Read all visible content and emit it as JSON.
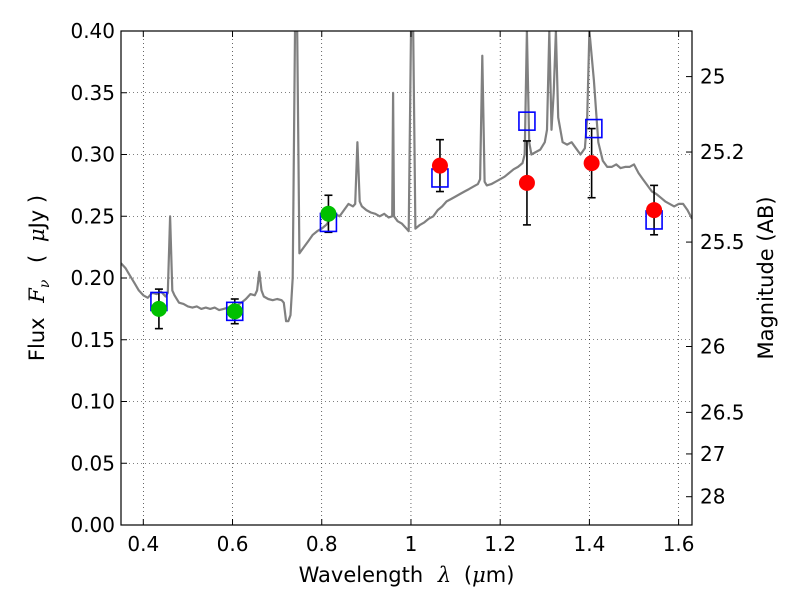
{
  "chart_data": {
    "type": "scatter",
    "xlabel": {
      "text": "Wavelength",
      "symbol": "λ",
      "unit_open": "(",
      "unit_mu": "μ",
      "unit_rest": "m)"
    },
    "ylabel": {
      "text": "Flux",
      "symbol": "F",
      "subscript": "ν",
      "unit_open": "(",
      "unit_mu": "μ",
      "unit_rest": "Jy )"
    },
    "y2label": "Magnitude (AB)",
    "xlim": [
      0.35,
      1.63
    ],
    "ylim": [
      0.0,
      0.4
    ],
    "grid": true,
    "x_ticks": [
      {
        "value": 0.4,
        "label": "0.4"
      },
      {
        "value": 0.6,
        "label": "0.6"
      },
      {
        "value": 0.8,
        "label": "0.8"
      },
      {
        "value": 1.0,
        "label": "1"
      },
      {
        "value": 1.2,
        "label": "1.2"
      },
      {
        "value": 1.4,
        "label": "1.4"
      },
      {
        "value": 1.6,
        "label": "1.6"
      }
    ],
    "y_ticks": [
      {
        "value": 0.0,
        "label": "0.00"
      },
      {
        "value": 0.05,
        "label": "0.05"
      },
      {
        "value": 0.1,
        "label": "0.10"
      },
      {
        "value": 0.15,
        "label": "0.15"
      },
      {
        "value": 0.2,
        "label": "0.20"
      },
      {
        "value": 0.25,
        "label": "0.25"
      },
      {
        "value": 0.3,
        "label": "0.30"
      },
      {
        "value": 0.35,
        "label": "0.35"
      },
      {
        "value": 0.4,
        "label": "0.40"
      }
    ],
    "mag_ticks": [
      {
        "mag": 25,
        "label": "25"
      },
      {
        "mag": 25.2,
        "label": "25.2"
      },
      {
        "mag": 25.5,
        "label": "25.5"
      },
      {
        "mag": 26,
        "label": "26"
      },
      {
        "mag": 26.5,
        "label": "26.5"
      },
      {
        "mag": 27,
        "label": "27"
      },
      {
        "mag": 28,
        "label": "28"
      }
    ],
    "mag_zero_point": 23.9,
    "colors": {
      "spectrum": "#808080",
      "green": "#00c000",
      "red": "#ff0000",
      "model": "#0000ff",
      "error": "#000000"
    },
    "spectrum": [
      [
        0.35,
        0.212
      ],
      [
        0.36,
        0.208
      ],
      [
        0.37,
        0.202
      ],
      [
        0.38,
        0.196
      ],
      [
        0.39,
        0.19
      ],
      [
        0.4,
        0.186
      ],
      [
        0.41,
        0.184
      ],
      [
        0.42,
        0.188
      ],
      [
        0.43,
        0.187
      ],
      [
        0.44,
        0.189
      ],
      [
        0.45,
        0.185
      ],
      [
        0.455,
        0.188
      ],
      [
        0.46,
        0.25
      ],
      [
        0.465,
        0.19
      ],
      [
        0.47,
        0.186
      ],
      [
        0.48,
        0.18
      ],
      [
        0.49,
        0.179
      ],
      [
        0.5,
        0.177
      ],
      [
        0.51,
        0.176
      ],
      [
        0.52,
        0.177
      ],
      [
        0.53,
        0.175
      ],
      [
        0.54,
        0.176
      ],
      [
        0.55,
        0.175
      ],
      [
        0.56,
        0.176
      ],
      [
        0.57,
        0.174
      ],
      [
        0.58,
        0.175
      ],
      [
        0.59,
        0.176
      ],
      [
        0.6,
        0.177
      ],
      [
        0.61,
        0.178
      ],
      [
        0.62,
        0.18
      ],
      [
        0.63,
        0.183
      ],
      [
        0.64,
        0.187
      ],
      [
        0.65,
        0.186
      ],
      [
        0.655,
        0.19
      ],
      [
        0.66,
        0.205
      ],
      [
        0.665,
        0.19
      ],
      [
        0.67,
        0.185
      ],
      [
        0.68,
        0.183
      ],
      [
        0.69,
        0.182
      ],
      [
        0.7,
        0.183
      ],
      [
        0.71,
        0.182
      ],
      [
        0.715,
        0.18
      ],
      [
        0.72,
        0.165
      ],
      [
        0.725,
        0.165
      ],
      [
        0.73,
        0.17
      ],
      [
        0.735,
        0.2
      ],
      [
        0.74,
        0.4
      ],
      [
        0.745,
        0.4
      ],
      [
        0.75,
        0.22
      ],
      [
        0.76,
        0.225
      ],
      [
        0.77,
        0.23
      ],
      [
        0.78,
        0.235
      ],
      [
        0.79,
        0.238
      ],
      [
        0.8,
        0.24
      ],
      [
        0.81,
        0.243
      ],
      [
        0.82,
        0.248
      ],
      [
        0.83,
        0.252
      ],
      [
        0.84,
        0.25
      ],
      [
        0.85,
        0.255
      ],
      [
        0.86,
        0.26
      ],
      [
        0.87,
        0.258
      ],
      [
        0.875,
        0.26
      ],
      [
        0.88,
        0.31
      ],
      [
        0.885,
        0.262
      ],
      [
        0.89,
        0.258
      ],
      [
        0.9,
        0.255
      ],
      [
        0.91,
        0.253
      ],
      [
        0.92,
        0.252
      ],
      [
        0.93,
        0.25
      ],
      [
        0.94,
        0.252
      ],
      [
        0.95,
        0.249
      ],
      [
        0.958,
        0.25
      ],
      [
        0.96,
        0.35
      ],
      [
        0.962,
        0.25
      ],
      [
        0.97,
        0.246
      ],
      [
        0.98,
        0.244
      ],
      [
        0.99,
        0.24
      ],
      [
        0.995,
        0.238
      ],
      [
        1.0,
        0.4
      ],
      [
        1.005,
        0.4
      ],
      [
        1.01,
        0.24
      ],
      [
        1.02,
        0.243
      ],
      [
        1.03,
        0.245
      ],
      [
        1.04,
        0.248
      ],
      [
        1.05,
        0.25
      ],
      [
        1.06,
        0.255
      ],
      [
        1.07,
        0.258
      ],
      [
        1.08,
        0.262
      ],
      [
        1.09,
        0.264
      ],
      [
        1.1,
        0.266
      ],
      [
        1.11,
        0.268
      ],
      [
        1.12,
        0.27
      ],
      [
        1.13,
        0.272
      ],
      [
        1.14,
        0.274
      ],
      [
        1.15,
        0.276
      ],
      [
        1.155,
        0.28
      ],
      [
        1.16,
        0.38
      ],
      [
        1.165,
        0.278
      ],
      [
        1.17,
        0.275
      ],
      [
        1.18,
        0.276
      ],
      [
        1.19,
        0.278
      ],
      [
        1.2,
        0.28
      ],
      [
        1.21,
        0.282
      ],
      [
        1.22,
        0.285
      ],
      [
        1.23,
        0.288
      ],
      [
        1.24,
        0.29
      ],
      [
        1.25,
        0.293
      ],
      [
        1.255,
        0.3
      ],
      [
        1.26,
        0.4
      ],
      [
        1.265,
        0.31
      ],
      [
        1.27,
        0.3
      ],
      [
        1.28,
        0.302
      ],
      [
        1.29,
        0.304
      ],
      [
        1.3,
        0.31
      ],
      [
        1.305,
        0.32
      ],
      [
        1.31,
        0.4
      ],
      [
        1.315,
        0.32
      ],
      [
        1.32,
        0.35
      ],
      [
        1.325,
        0.4
      ],
      [
        1.33,
        0.33
      ],
      [
        1.34,
        0.31
      ],
      [
        1.35,
        0.308
      ],
      [
        1.36,
        0.31
      ],
      [
        1.37,
        0.305
      ],
      [
        1.38,
        0.3
      ],
      [
        1.39,
        0.305
      ],
      [
        1.395,
        0.33
      ],
      [
        1.4,
        0.4
      ],
      [
        1.41,
        0.36
      ],
      [
        1.42,
        0.31
      ],
      [
        1.43,
        0.295
      ],
      [
        1.44,
        0.29
      ],
      [
        1.45,
        0.29
      ],
      [
        1.46,
        0.292
      ],
      [
        1.47,
        0.289
      ],
      [
        1.48,
        0.29
      ],
      [
        1.49,
        0.29
      ],
      [
        1.5,
        0.292
      ],
      [
        1.51,
        0.285
      ],
      [
        1.52,
        0.28
      ],
      [
        1.53,
        0.275
      ],
      [
        1.54,
        0.27
      ],
      [
        1.55,
        0.268
      ],
      [
        1.56,
        0.265
      ],
      [
        1.57,
        0.262
      ],
      [
        1.58,
        0.26
      ],
      [
        1.59,
        0.258
      ],
      [
        1.6,
        0.26
      ],
      [
        1.61,
        0.26
      ],
      [
        1.62,
        0.255
      ],
      [
        1.63,
        0.248
      ]
    ],
    "observed_green": [
      {
        "x": 0.435,
        "y": 0.175,
        "yerr": 0.016
      },
      {
        "x": 0.605,
        "y": 0.173,
        "yerr": 0.01
      },
      {
        "x": 0.815,
        "y": 0.252,
        "yerr": 0.015
      }
    ],
    "observed_red": [
      {
        "x": 1.065,
        "y": 0.291,
        "yerr": 0.021
      },
      {
        "x": 1.26,
        "y": 0.277,
        "yerr": 0.034
      },
      {
        "x": 1.405,
        "y": 0.293,
        "yerr": 0.028
      },
      {
        "x": 1.545,
        "y": 0.255,
        "yerr": 0.02
      }
    ],
    "model_squares": [
      {
        "x": 0.435,
        "y": 0.181
      },
      {
        "x": 0.605,
        "y": 0.173
      },
      {
        "x": 0.815,
        "y": 0.245
      },
      {
        "x": 1.065,
        "y": 0.281
      },
      {
        "x": 1.26,
        "y": 0.327
      },
      {
        "x": 1.41,
        "y": 0.321
      },
      {
        "x": 1.545,
        "y": 0.247
      }
    ]
  }
}
